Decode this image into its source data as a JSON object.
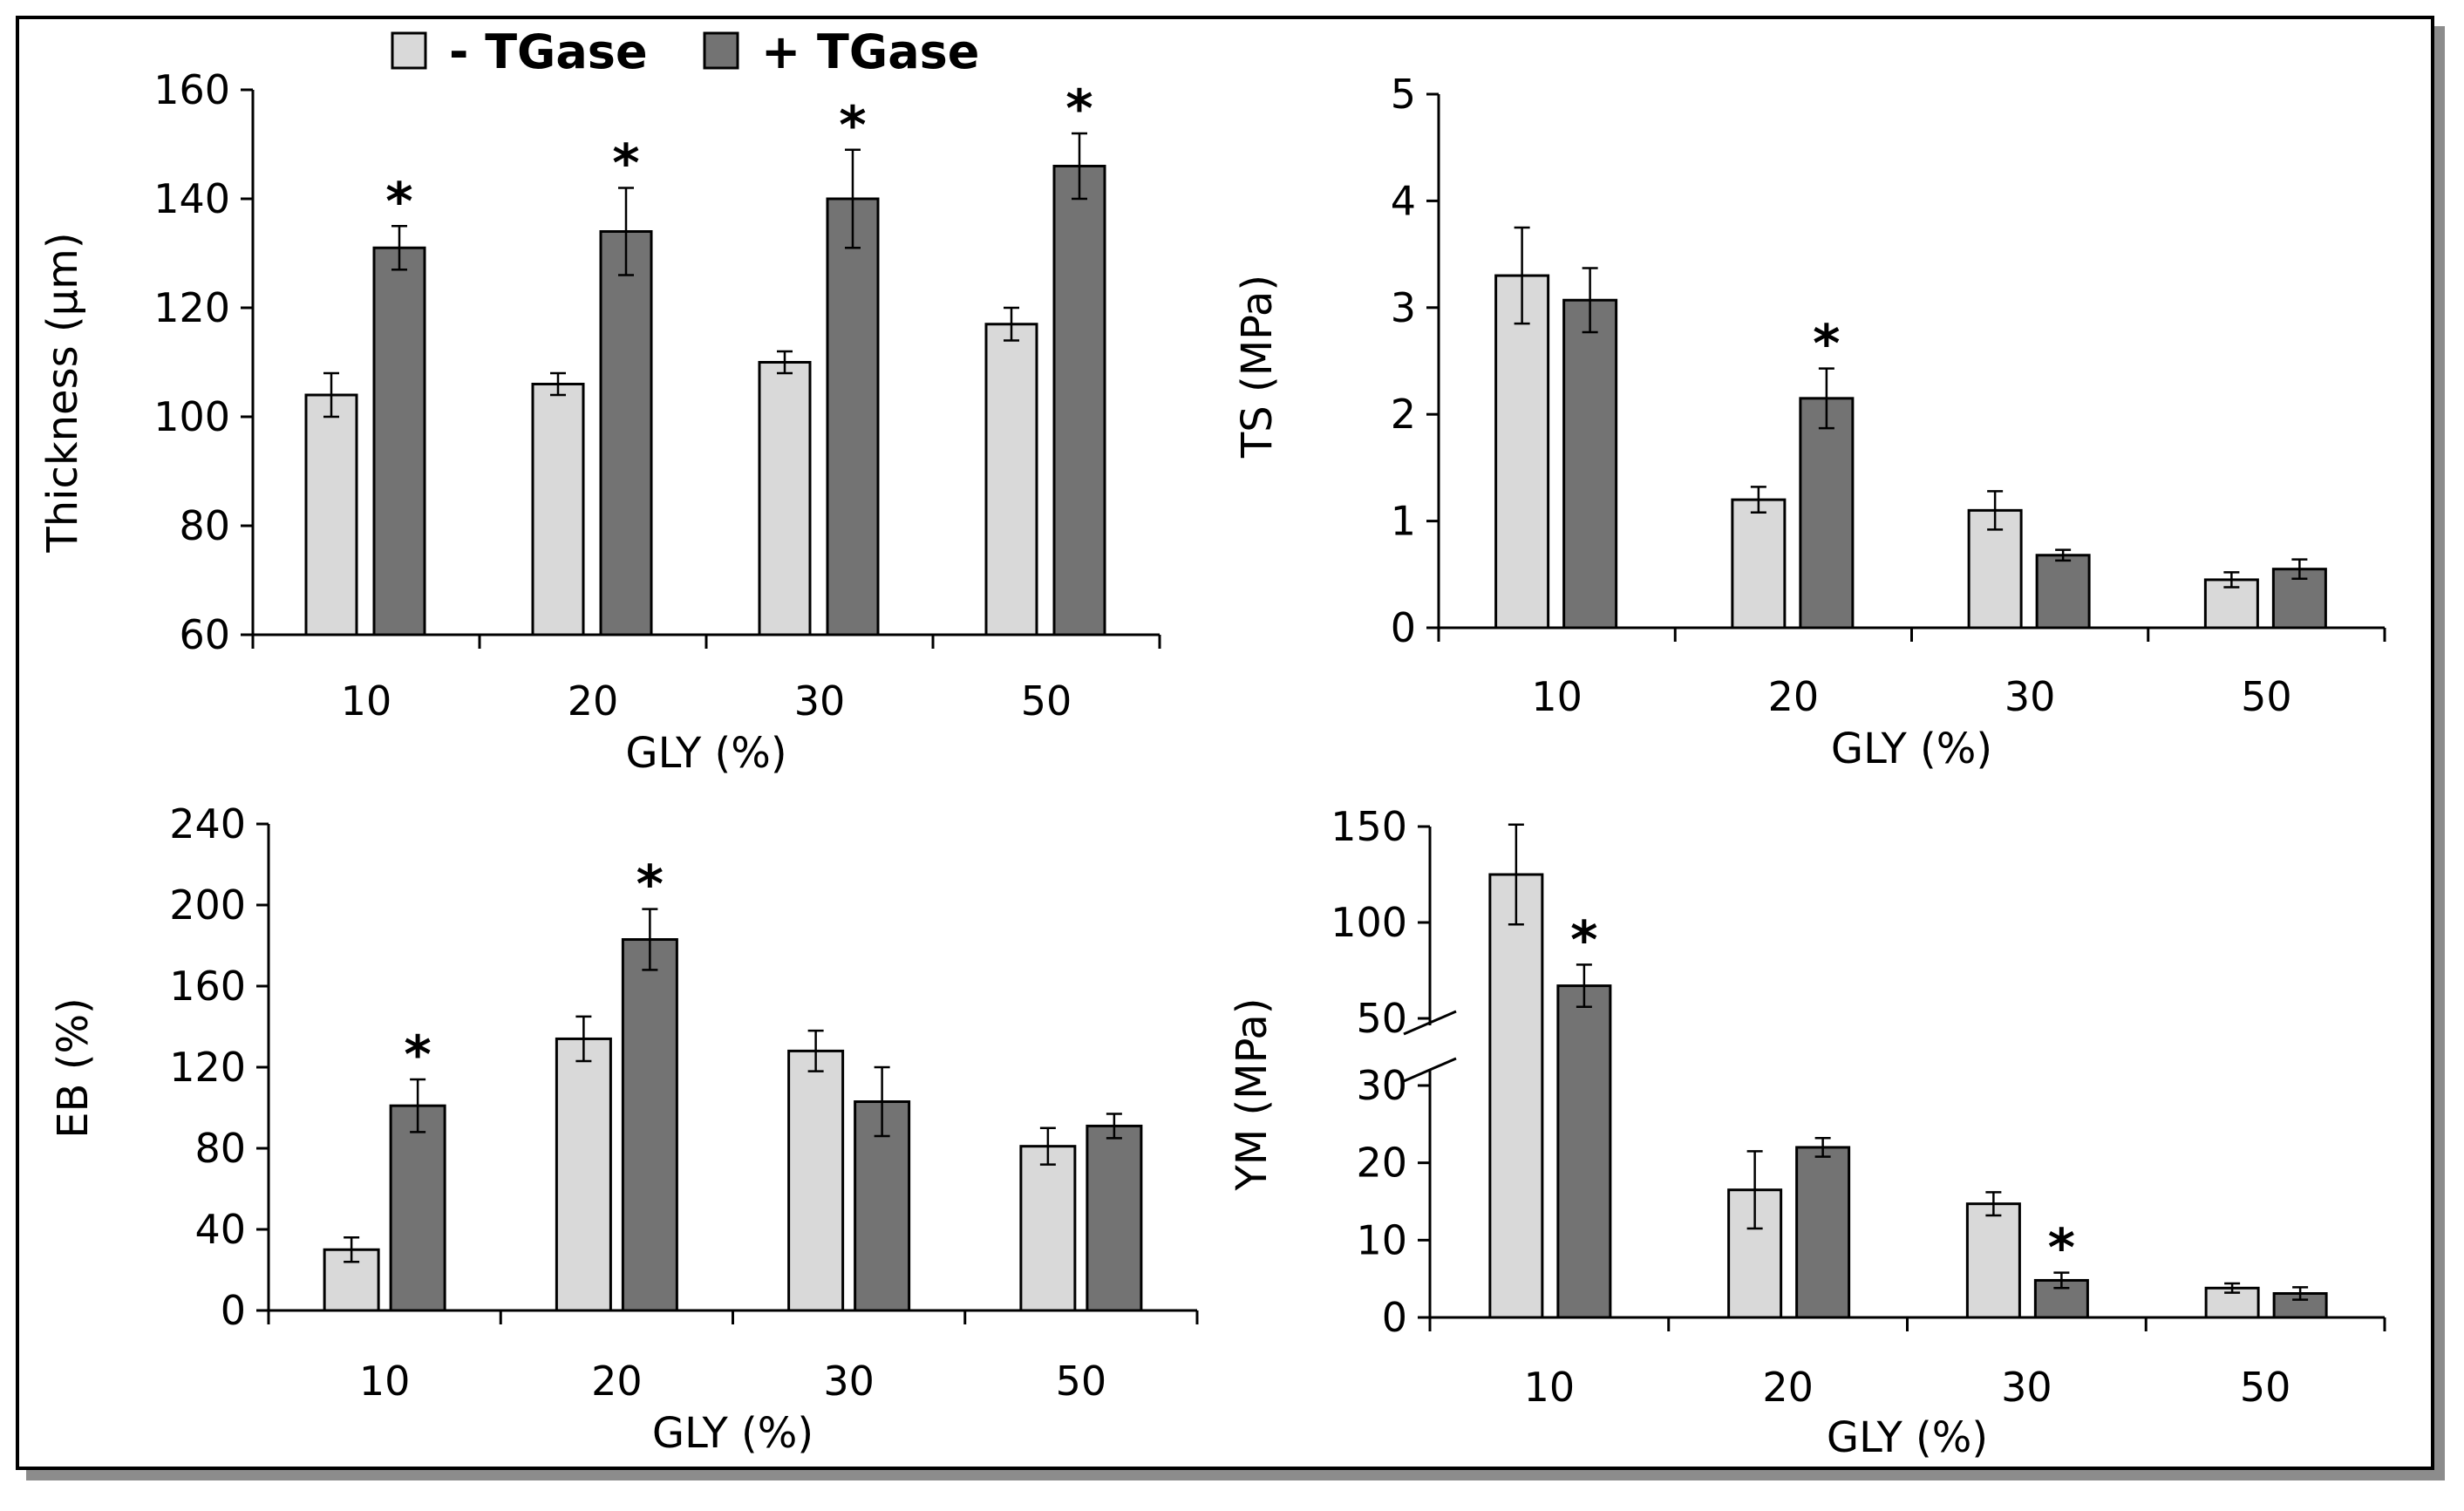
{
  "colors": {
    "minus": "#d9d9d9",
    "plus": "#737373",
    "stroke": "#000000"
  },
  "legend": {
    "minus_label": "- TGase",
    "plus_label": "+ TGase"
  },
  "chart_data": [
    {
      "id": "thickness",
      "type": "bar",
      "xlabel": "GLY (%)",
      "ylabel": "Thickness (µm)",
      "categories": [
        "10",
        "20",
        "30",
        "50"
      ],
      "ylim": [
        60,
        160
      ],
      "yticks": [
        60,
        80,
        100,
        120,
        140,
        160
      ],
      "series": [
        {
          "name": "- TGase",
          "values": [
            104,
            106,
            110,
            117
          ],
          "errors": [
            4,
            2,
            2,
            3
          ]
        },
        {
          "name": "+ TGase",
          "values": [
            131,
            134,
            140,
            146
          ],
          "errors": [
            4,
            8,
            9,
            6
          ]
        }
      ],
      "significant": [
        false,
        true,
        false,
        true,
        false,
        true,
        false,
        true
      ]
    },
    {
      "id": "ts",
      "type": "bar",
      "xlabel": "GLY (%)",
      "ylabel": "TS (MPa)",
      "categories": [
        "10",
        "20",
        "30",
        "50"
      ],
      "ylim": [
        0,
        5
      ],
      "yticks": [
        0,
        1,
        2,
        3,
        4,
        5
      ],
      "series": [
        {
          "name": "- TGase",
          "values": [
            3.3,
            1.2,
            1.1,
            0.45
          ],
          "errors": [
            0.45,
            0.12,
            0.18,
            0.07
          ]
        },
        {
          "name": "+ TGase",
          "values": [
            3.07,
            2.15,
            0.68,
            0.55
          ],
          "errors": [
            0.3,
            0.28,
            0.05,
            0.09
          ]
        }
      ],
      "significant": [
        false,
        false,
        false,
        true,
        false,
        false,
        false,
        false
      ]
    },
    {
      "id": "eb",
      "type": "bar",
      "xlabel": "GLY (%)",
      "ylabel": "EB (%)",
      "categories": [
        "10",
        "20",
        "30",
        "50"
      ],
      "ylim": [
        0,
        240
      ],
      "yticks": [
        0,
        40,
        80,
        120,
        160,
        200,
        240
      ],
      "series": [
        {
          "name": "- TGase",
          "values": [
            30,
            134,
            128,
            81
          ],
          "errors": [
            6,
            11,
            10,
            9
          ]
        },
        {
          "name": "+ TGase",
          "values": [
            101,
            183,
            103,
            91
          ],
          "errors": [
            13,
            15,
            17,
            6
          ]
        }
      ],
      "significant": [
        false,
        true,
        false,
        true,
        false,
        false,
        false,
        false
      ]
    },
    {
      "id": "ym",
      "type": "bar",
      "xlabel": "GLY (%)",
      "ylabel": "YM (MPa)",
      "categories": [
        "10",
        "20",
        "30",
        "50"
      ],
      "ylim": [
        0,
        150
      ],
      "axis_break": [
        35,
        50
      ],
      "yticks_lower": [
        0,
        10,
        20,
        30
      ],
      "yticks_upper": [
        50,
        100,
        150
      ],
      "series": [
        {
          "name": "- TGase",
          "values": [
            125,
            16.5,
            14.7,
            3.8
          ],
          "errors": [
            26,
            5,
            1.5,
            0.6
          ]
        },
        {
          "name": "+ TGase",
          "values": [
            67,
            22,
            4.8,
            3.1
          ],
          "errors": [
            11,
            1.2,
            1,
            0.8
          ]
        }
      ],
      "significant": [
        false,
        true,
        false,
        false,
        false,
        true,
        false,
        false
      ]
    }
  ]
}
